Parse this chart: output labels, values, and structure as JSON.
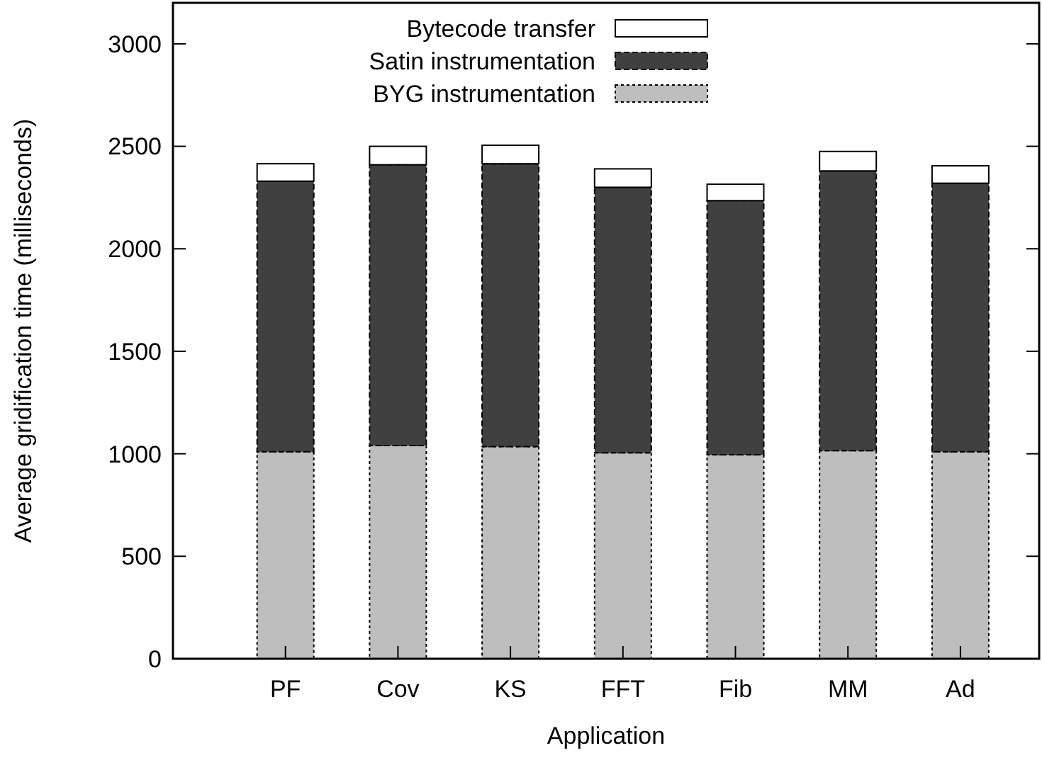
{
  "chart_data": {
    "type": "bar",
    "stacked": true,
    "xlabel": "Application",
    "ylabel": "Average gridification time (milliseconds)",
    "categories": [
      "PF",
      "Cov",
      "KS",
      "FFT",
      "Fib",
      "MM",
      "Ad"
    ],
    "series": [
      {
        "name": "BYG instrumentation",
        "color": "#bebebe",
        "line_style": "dotted",
        "values": [
          1010,
          1040,
          1035,
          1005,
          995,
          1015,
          1010
        ]
      },
      {
        "name": "Satin instrumentation",
        "color": "#404040",
        "line_style": "dashed",
        "values": [
          1320,
          1370,
          1380,
          1295,
          1240,
          1365,
          1310
        ]
      },
      {
        "name": "Bytecode transfer",
        "color": "#ffffff",
        "line_style": "solid",
        "values": [
          85,
          90,
          90,
          90,
          80,
          95,
          85
        ]
      }
    ],
    "ylim": [
      0,
      3200
    ],
    "yticks": [
      0,
      500,
      1000,
      1500,
      2000,
      2500,
      3000
    ],
    "legend": "top",
    "grid": false
  }
}
